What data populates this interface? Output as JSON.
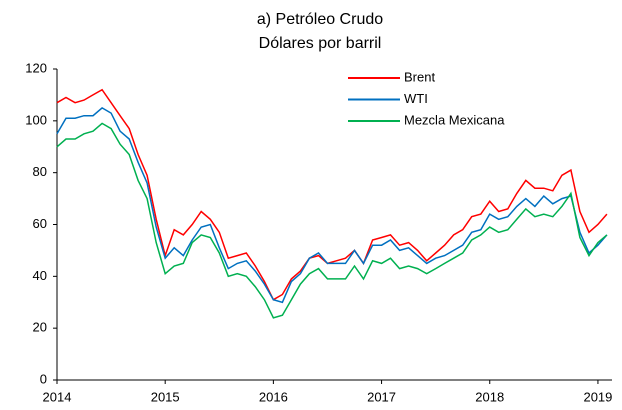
{
  "chart_data": {
    "type": "line",
    "title": "a) Petróleo Crudo",
    "subtitle": "Dólares por barril",
    "x": [
      2014,
      2014.083,
      2014.167,
      2014.25,
      2014.333,
      2014.417,
      2014.5,
      2014.583,
      2014.667,
      2014.75,
      2014.833,
      2014.917,
      2015,
      2015.083,
      2015.167,
      2015.25,
      2015.333,
      2015.417,
      2015.5,
      2015.583,
      2015.667,
      2015.75,
      2015.833,
      2015.917,
      2016,
      2016.083,
      2016.167,
      2016.25,
      2016.333,
      2016.417,
      2016.5,
      2016.583,
      2016.667,
      2016.75,
      2016.833,
      2016.917,
      2017,
      2017.083,
      2017.167,
      2017.25,
      2017.333,
      2017.417,
      2017.5,
      2017.583,
      2017.667,
      2017.75,
      2017.833,
      2017.917,
      2018,
      2018.083,
      2018.167,
      2018.25,
      2018.333,
      2018.417,
      2018.5,
      2018.583,
      2018.667,
      2018.75,
      2018.833,
      2018.917,
      2019,
      2019.083
    ],
    "series": [
      {
        "name": "Brent",
        "color": "#ff0000",
        "values": [
          107,
          109,
          107,
          108,
          110,
          112,
          107,
          102,
          97,
          87,
          79,
          62,
          48,
          58,
          56,
          60,
          65,
          62,
          57,
          47,
          48,
          49,
          44,
          38,
          31,
          33,
          39,
          42,
          47,
          48,
          45,
          46,
          47,
          50,
          45,
          54,
          55,
          56,
          52,
          53,
          50,
          46,
          49,
          52,
          56,
          58,
          63,
          64,
          69,
          65,
          66,
          72,
          77,
          74,
          74,
          73,
          79,
          81,
          65,
          57,
          60,
          64
        ]
      },
      {
        "name": "WTI",
        "color": "#0070c0",
        "values": [
          95,
          101,
          101,
          102,
          102,
          105,
          103,
          96,
          93,
          84,
          76,
          59,
          47,
          51,
          48,
          54,
          59,
          60,
          51,
          43,
          45,
          46,
          42,
          37,
          31,
          30,
          38,
          41,
          47,
          49,
          45,
          45,
          45,
          50,
          45,
          52,
          52,
          54,
          50,
          51,
          48,
          45,
          47,
          48,
          50,
          52,
          57,
          58,
          64,
          62,
          63,
          67,
          70,
          67,
          71,
          68,
          70,
          71,
          57,
          49,
          52,
          56
        ]
      },
      {
        "name": "Mezcla Mexicana",
        "color": "#00b050",
        "values": [
          90,
          93,
          93,
          95,
          96,
          99,
          97,
          91,
          87,
          77,
          70,
          53,
          41,
          44,
          45,
          53,
          56,
          55,
          49,
          40,
          41,
          40,
          36,
          31,
          24,
          25,
          31,
          37,
          41,
          43,
          39,
          39,
          39,
          44,
          39,
          46,
          45,
          47,
          43,
          44,
          43,
          41,
          43,
          45,
          47,
          49,
          54,
          56,
          59,
          57,
          58,
          62,
          66,
          63,
          64,
          63,
          67,
          72,
          55,
          48,
          53,
          56
        ]
      }
    ],
    "xlim": [
      2014,
      2019.13
    ],
    "xticks": [
      2014,
      2015,
      2016,
      2017,
      2018,
      2019
    ],
    "ylim": [
      0,
      120
    ],
    "yticks": [
      0,
      20,
      40,
      60,
      80,
      100,
      120
    ]
  }
}
